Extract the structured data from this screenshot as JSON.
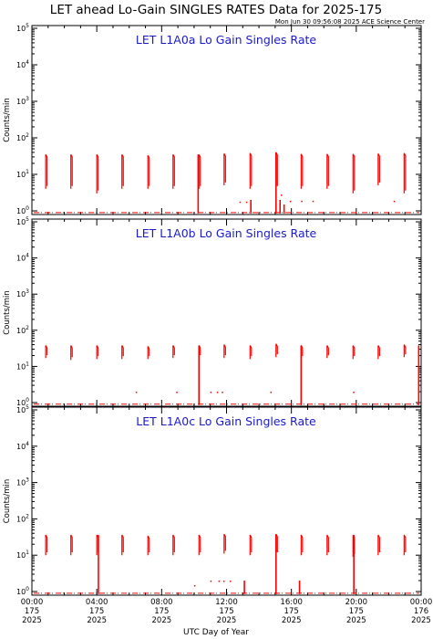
{
  "page": {
    "title": "LET ahead Lo-Gain SINGLES RATES Data for 2025-175",
    "timestamp": "Mon Jun 30 09:56:08 2025 ACE Science Center",
    "xlabel": "UTC Day of Year"
  },
  "colors": {
    "data": "#ff0000",
    "panel_title": "#1a1acc",
    "axes": "#000000",
    "background": "#ffffff"
  },
  "x_ticks": [
    {
      "time": "00:00",
      "day": "175",
      "year": "2025"
    },
    {
      "time": "04:00",
      "day": "175",
      "year": "2025"
    },
    {
      "time": "08:00",
      "day": "175",
      "year": "2025"
    },
    {
      "time": "12:00",
      "day": "175",
      "year": "2025"
    },
    {
      "time": "16:00",
      "day": "175",
      "year": "2025"
    },
    {
      "time": "20:00",
      "day": "175",
      "year": "2025"
    },
    {
      "time": "00:00",
      "day": "176",
      "year": "2025"
    }
  ],
  "y_tick_labels": [
    {
      "base": "10",
      "exp": "0"
    },
    {
      "base": "10",
      "exp": "1"
    },
    {
      "base": "10",
      "exp": "2"
    },
    {
      "base": "10",
      "exp": "3"
    },
    {
      "base": "10",
      "exp": "4"
    },
    {
      "base": "10",
      "exp": "5"
    }
  ],
  "chart_data": [
    {
      "type": "line",
      "title": "LET L1A0a Lo Gain Singles Rate",
      "ylabel": "Counts/min",
      "xlim": [
        0,
        24
      ],
      "ylim": [
        1,
        100000
      ],
      "yscale": "log",
      "baseline": 0.9,
      "bursts": [
        {
          "start": 0.85,
          "low": 4,
          "high": 35
        },
        {
          "start": 2.4,
          "low": 4,
          "high": 35
        },
        {
          "start": 4.0,
          "low": 3,
          "high": 35
        },
        {
          "start": 5.55,
          "low": 4,
          "high": 35
        },
        {
          "start": 7.15,
          "low": 4,
          "high": 33
        },
        {
          "start": 8.7,
          "low": 4,
          "high": 35
        },
        {
          "start": 10.3,
          "low": 4,
          "high": 35
        },
        {
          "start": 11.85,
          "low": 5,
          "high": 37
        },
        {
          "start": 13.45,
          "low": 4,
          "high": 38
        },
        {
          "start": 15.05,
          "low": 4,
          "high": 40
        },
        {
          "start": 16.6,
          "low": 4,
          "high": 36
        },
        {
          "start": 18.2,
          "low": 4,
          "high": 36
        },
        {
          "start": 19.8,
          "low": 3,
          "high": 36
        },
        {
          "start": 21.35,
          "low": 5,
          "high": 37
        },
        {
          "start": 22.95,
          "low": 3,
          "high": 38
        }
      ],
      "drops": [
        {
          "x": 10.25,
          "top": 35
        },
        {
          "x": 15.05,
          "top": 40
        },
        {
          "x": 13.5,
          "top": 2
        },
        {
          "x": 15.3,
          "top": 2
        },
        {
          "x": 15.55,
          "top": 1.5
        }
      ],
      "dots": [
        {
          "x": 12.8,
          "y": 1.8
        },
        {
          "x": 13.2,
          "y": 1.8
        },
        {
          "x": 15.35,
          "y": 2.8
        },
        {
          "x": 15.9,
          "y": 1.9
        },
        {
          "x": 16.6,
          "y": 1.9
        },
        {
          "x": 17.3,
          "y": 1.9
        },
        {
          "x": 22.3,
          "y": 1.9
        }
      ]
    },
    {
      "type": "line",
      "title": "LET L1A0b Lo Gain Singles Rate",
      "ylabel": "Counts/min",
      "xlim": [
        0,
        24
      ],
      "ylim": [
        1,
        100000
      ],
      "yscale": "log",
      "baseline": 0.9,
      "bursts": [
        {
          "start": 0.85,
          "low": 17,
          "high": 38
        },
        {
          "start": 2.4,
          "low": 15,
          "high": 38
        },
        {
          "start": 4.0,
          "low": 16,
          "high": 38
        },
        {
          "start": 5.55,
          "low": 16,
          "high": 38
        },
        {
          "start": 7.15,
          "low": 16,
          "high": 36
        },
        {
          "start": 8.7,
          "low": 17,
          "high": 38
        },
        {
          "start": 10.3,
          "low": 17,
          "high": 38
        },
        {
          "start": 11.85,
          "low": 17,
          "high": 40
        },
        {
          "start": 13.45,
          "low": 16,
          "high": 38
        },
        {
          "start": 15.05,
          "low": 18,
          "high": 42
        },
        {
          "start": 16.6,
          "low": 16,
          "high": 38
        },
        {
          "start": 18.2,
          "low": 17,
          "high": 38
        },
        {
          "start": 19.8,
          "low": 16,
          "high": 38
        },
        {
          "start": 21.35,
          "low": 16,
          "high": 38
        },
        {
          "start": 22.95,
          "low": 18,
          "high": 40
        }
      ],
      "drops": [
        {
          "x": 10.3,
          "top": 38
        },
        {
          "x": 16.6,
          "top": 38
        },
        {
          "x": 23.85,
          "top": 38
        }
      ],
      "dots": [
        {
          "x": 6.4,
          "y": 2
        },
        {
          "x": 8.9,
          "y": 2
        },
        {
          "x": 11.0,
          "y": 2
        },
        {
          "x": 11.4,
          "y": 2
        },
        {
          "x": 11.7,
          "y": 2
        },
        {
          "x": 14.7,
          "y": 2
        },
        {
          "x": 19.8,
          "y": 2
        }
      ]
    },
    {
      "type": "line",
      "title": "LET L1A0c Lo Gain Singles Rate",
      "ylabel": "Counts/min",
      "xlim": [
        0,
        24
      ],
      "ylim": [
        1,
        100000
      ],
      "yscale": "log",
      "baseline": 0.9,
      "bursts": [
        {
          "start": 0.85,
          "low": 10,
          "high": 36
        },
        {
          "start": 2.4,
          "low": 10,
          "high": 36
        },
        {
          "start": 4.0,
          "low": 10,
          "high": 36
        },
        {
          "start": 5.55,
          "low": 10,
          "high": 36
        },
        {
          "start": 7.15,
          "low": 10,
          "high": 34
        },
        {
          "start": 8.7,
          "low": 10,
          "high": 36
        },
        {
          "start": 10.3,
          "low": 10,
          "high": 36
        },
        {
          "start": 11.85,
          "low": 11,
          "high": 38
        },
        {
          "start": 13.45,
          "low": 10,
          "high": 36
        },
        {
          "start": 15.05,
          "low": 10,
          "high": 38
        },
        {
          "start": 16.6,
          "low": 10,
          "high": 36
        },
        {
          "start": 18.2,
          "low": 10,
          "high": 36
        },
        {
          "start": 19.8,
          "low": 9,
          "high": 36
        },
        {
          "start": 21.35,
          "low": 10,
          "high": 36
        },
        {
          "start": 22.95,
          "low": 10,
          "high": 36
        }
      ],
      "drops": [
        {
          "x": 4.1,
          "top": 36
        },
        {
          "x": 15.05,
          "top": 38
        },
        {
          "x": 19.85,
          "top": 36
        },
        {
          "x": 13.1,
          "top": 2
        },
        {
          "x": 16.5,
          "top": 2
        }
      ],
      "dots": [
        {
          "x": 11.0,
          "y": 2
        },
        {
          "x": 11.5,
          "y": 2
        },
        {
          "x": 11.8,
          "y": 2
        },
        {
          "x": 12.2,
          "y": 2
        },
        {
          "x": 10.0,
          "y": 1.5
        }
      ]
    }
  ]
}
